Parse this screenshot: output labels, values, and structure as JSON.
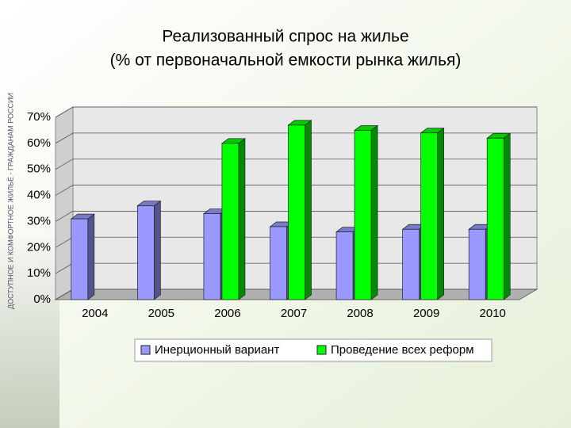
{
  "side_caption": "ДОСТУПНОЕ И КОМФОРТНОЕ ЖИЛЬЁ - ГРАЖДАНАМ РОССИИ",
  "chart_data": {
    "type": "bar3d",
    "title": "Реализованный спрос на жилье",
    "subtitle": "(% от первоначальной емкости рынка жилья)",
    "categories": [
      "2004",
      "2005",
      "2006",
      "2007",
      "2008",
      "2009",
      "2010"
    ],
    "series": [
      {
        "name": "Инерционный вариант",
        "color": "#9999ff",
        "values": [
          31,
          36,
          33,
          28,
          26,
          27,
          27
        ]
      },
      {
        "name": "Проведение всех реформ",
        "color": "#00ff00",
        "values": [
          null,
          null,
          60,
          67,
          65,
          64,
          62
        ]
      }
    ],
    "ylim": [
      0,
      70
    ],
    "yticks": [
      {
        "value": 0,
        "label": "0%"
      },
      {
        "value": 10,
        "label": "10%"
      },
      {
        "value": 20,
        "label": "20%"
      },
      {
        "value": 30,
        "label": "30%"
      },
      {
        "value": 40,
        "label": "40%"
      },
      {
        "value": 50,
        "label": "50%"
      },
      {
        "value": 60,
        "label": "60%"
      },
      {
        "value": 70,
        "label": "70%"
      }
    ],
    "grid": true,
    "legend": "bottom"
  }
}
